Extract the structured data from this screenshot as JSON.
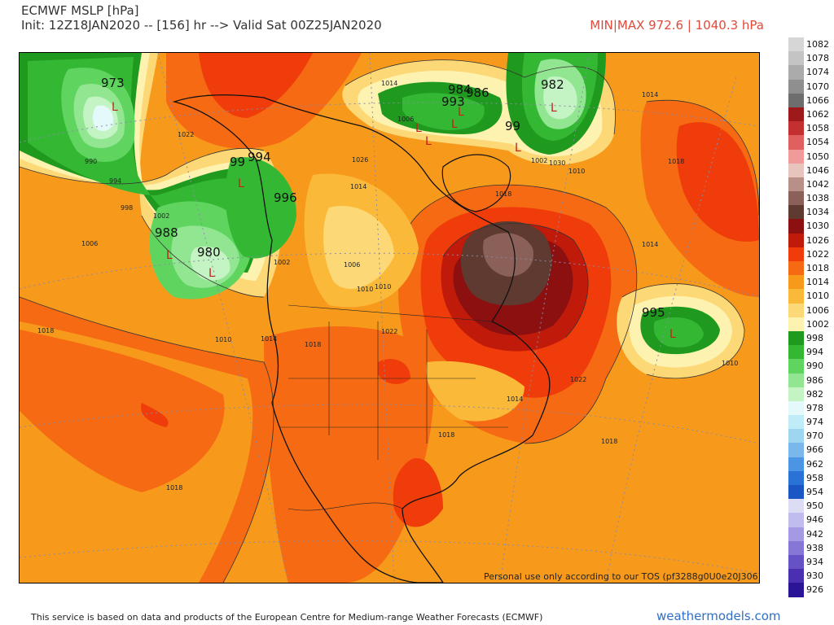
{
  "header": {
    "title": "ECMWF MSLP [hPa]",
    "init_line": "Init: 12Z18JAN2020 -- [156] hr --> Valid Sat 00Z25JAN2020",
    "minmax": "MIN|MAX 972.6 | 1040.3 hPa"
  },
  "colorbar": [
    {
      "label": "1082",
      "color": "#d6d6d6"
    },
    {
      "label": "1078",
      "color": "#c4c4c4"
    },
    {
      "label": "1074",
      "color": "#ababab"
    },
    {
      "label": "1070",
      "color": "#8f8f8f"
    },
    {
      "label": "1066",
      "color": "#6e6e6e"
    },
    {
      "label": "1062",
      "color": "#9e1a1a"
    },
    {
      "label": "1058",
      "color": "#c43030"
    },
    {
      "label": "1054",
      "color": "#e06060"
    },
    {
      "label": "1050",
      "color": "#f09a9a"
    },
    {
      "label": "1046",
      "color": "#e8c4bf"
    },
    {
      "label": "1042",
      "color": "#b89088"
    },
    {
      "label": "1038",
      "color": "#8a6058"
    },
    {
      "label": "1034",
      "color": "#5e3a30"
    },
    {
      "label": "1030",
      "color": "#8c1010"
    },
    {
      "label": "1026",
      "color": "#c01a0a"
    },
    {
      "label": "1022",
      "color": "#f03c0a"
    },
    {
      "label": "1018",
      "color": "#f56a12"
    },
    {
      "label": "1014",
      "color": "#f79a1c"
    },
    {
      "label": "1010",
      "color": "#fbb93a"
    },
    {
      "label": "1006",
      "color": "#fdd876"
    },
    {
      "label": "1002",
      "color": "#fef2b0"
    },
    {
      "label": "998",
      "color": "#1f9a1f"
    },
    {
      "label": "994",
      "color": "#34b834"
    },
    {
      "label": "990",
      "color": "#5fd45f"
    },
    {
      "label": "986",
      "color": "#92e692"
    },
    {
      "label": "982",
      "color": "#c4f4c4"
    },
    {
      "label": "978",
      "color": "#e4fafa"
    },
    {
      "label": "974",
      "color": "#c0ecf8"
    },
    {
      "label": "970",
      "color": "#9ed6f2"
    },
    {
      "label": "966",
      "color": "#7ab8ec"
    },
    {
      "label": "962",
      "color": "#4c94e4"
    },
    {
      "label": "958",
      "color": "#2a72d6"
    },
    {
      "label": "954",
      "color": "#1a56c4"
    },
    {
      "label": "950",
      "color": "#dcdcf4"
    },
    {
      "label": "946",
      "color": "#c0bcee"
    },
    {
      "label": "942",
      "color": "#a49ae4"
    },
    {
      "label": "938",
      "color": "#8676d6"
    },
    {
      "label": "934",
      "color": "#6652c4"
    },
    {
      "label": "930",
      "color": "#4a30b0"
    },
    {
      "label": "926",
      "color": "#2c1496"
    }
  ],
  "map": {
    "pressure_centers": [
      {
        "label": "973"
      },
      {
        "label": "982"
      },
      {
        "label": "984"
      },
      {
        "label": "986"
      },
      {
        "label": "993"
      },
      {
        "label": "99"
      },
      {
        "label": "994"
      },
      {
        "label": "99"
      },
      {
        "label": "996"
      },
      {
        "label": "988"
      },
      {
        "label": "980"
      },
      {
        "label": "995"
      }
    ],
    "lows": [
      "L",
      "L",
      "L",
      "L",
      "L",
      "L",
      "L",
      "L",
      "L",
      "L",
      "L"
    ],
    "contour_labels": [
      "990",
      "994",
      "998",
      "1002",
      "1006",
      "1010",
      "1014",
      "1018",
      "1022",
      "1026",
      "1030",
      "1014",
      "1018",
      "1010",
      "1006",
      "1002",
      "1010",
      "1014",
      "1018",
      "1022",
      "1018",
      "1014",
      "1014",
      "1018",
      "1010",
      "1006",
      "1002",
      "1014",
      "1018",
      "1022",
      "1010",
      "1018"
    ],
    "tos_text": "Personal use only according to our TOS (pf3288g0U0e20J306)"
  },
  "footer": {
    "attribution": "This service is based on data and products of the European Centre for Medium-range Weather Forecasts (ECMWF)",
    "site": "weathermodels.com"
  }
}
